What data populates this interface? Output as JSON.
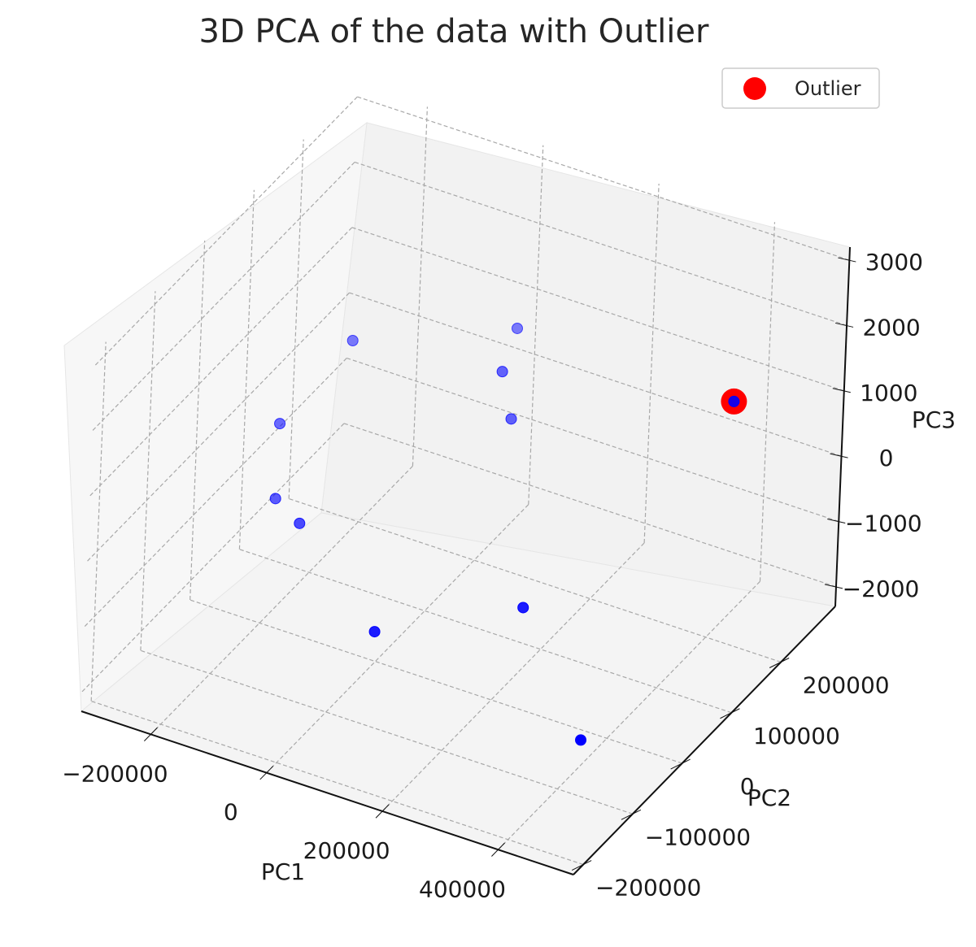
{
  "chart_data": {
    "type": "scatter",
    "title": "3D PCA of the data with Outlier",
    "xlabel": "PC1",
    "ylabel": "PC2",
    "zlabel": "PC3",
    "x_ticks": [
      "−200000",
      "0",
      "200000",
      "400000"
    ],
    "y_ticks": [
      "−200000",
      "−100000",
      "0",
      "100000",
      "200000"
    ],
    "z_ticks": [
      "−2000",
      "−1000",
      "0",
      "1000",
      "2000",
      "3000"
    ],
    "xlim": [
      -320000,
      530000
    ],
    "ylim": [
      -220000,
      310000
    ],
    "zlim": [
      -2300,
      3200
    ],
    "grid": true,
    "legend_position": "top-right",
    "colors": {
      "points": "#0000ff",
      "outlier": "#ff0000"
    },
    "series": [
      {
        "color": "#0000ff",
        "points": [
          {
            "x": -268000,
            "y": 110000,
            "z": -300
          },
          {
            "x": -242000,
            "y": 75000,
            "z": -1100
          },
          {
            "x": -175000,
            "y": 45000,
            "z": -1050
          },
          {
            "x": -210000,
            "y": 185000,
            "z": 560
          },
          {
            "x": 35000,
            "y": 200000,
            "z": 690
          },
          {
            "x": 55000,
            "y": 198000,
            "z": 40
          },
          {
            "x": 5000,
            "y": 265000,
            "z": 760
          },
          {
            "x": 220000,
            "y": 35000,
            "z": -1100
          },
          {
            "x": 25000,
            "y": -35000,
            "z": -1500
          },
          {
            "x": 400000,
            "y": -55000,
            "z": -1900
          },
          {
            "x": 498000,
            "y": 118000,
            "z": 2230
          }
        ]
      },
      {
        "name": "Outlier",
        "color": "#ff0000",
        "points": [
          {
            "x": 498000,
            "y": 118000,
            "z": 2230
          }
        ]
      }
    ]
  }
}
